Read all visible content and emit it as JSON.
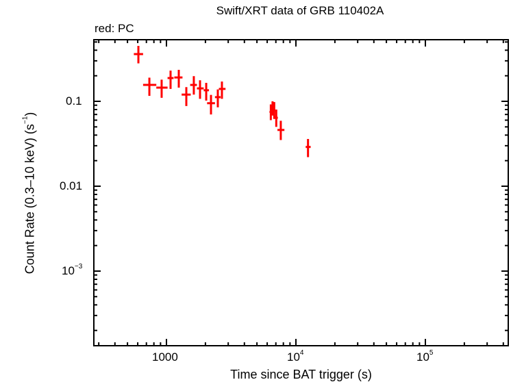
{
  "chart_data": {
    "type": "scatter",
    "title": "Swift/XRT data of GRB 110402A",
    "subtitle": "red: PC",
    "xlabel": "Time since BAT trigger (s)",
    "ylabel": "Count Rate (0.3–10 keV) (s⁻¹)",
    "xscale": "log",
    "yscale": "log",
    "xlim": [
      275,
      437000
    ],
    "ylim": [
      0.00013,
      0.53
    ],
    "x_ticks": [
      {
        "value": 1000,
        "label": "1000"
      },
      {
        "value": 10000,
        "label": "10^4"
      },
      {
        "value": 100000,
        "label": "10^5"
      }
    ],
    "y_ticks": [
      {
        "value": 0.1,
        "label": "0.1"
      },
      {
        "value": 0.01,
        "label": "0.01"
      },
      {
        "value": 0.001,
        "label": "10^-3"
      }
    ],
    "legend": [
      {
        "name": "PC",
        "color": "#ff0000"
      }
    ],
    "grid": false,
    "series": [
      {
        "name": "PC",
        "color": "#ff0000",
        "points": [
          {
            "x": 607,
            "xlo": 560,
            "xhi": 660,
            "y": 0.36,
            "ylo": 0.28,
            "yhi": 0.45
          },
          {
            "x": 738,
            "xlo": 660,
            "xhi": 835,
            "y": 0.156,
            "ylo": 0.116,
            "yhi": 0.19
          },
          {
            "x": 918,
            "xlo": 835,
            "xhi": 1020,
            "y": 0.145,
            "ylo": 0.11,
            "yhi": 0.18
          },
          {
            "x": 1076,
            "xlo": 1020,
            "xhi": 1135,
            "y": 0.188,
            "ylo": 0.14,
            "yhi": 0.23
          },
          {
            "x": 1245,
            "xlo": 1150,
            "xhi": 1330,
            "y": 0.191,
            "ylo": 0.145,
            "yhi": 0.235
          },
          {
            "x": 1424,
            "xlo": 1310,
            "xhi": 1540,
            "y": 0.12,
            "ylo": 0.088,
            "yhi": 0.147
          },
          {
            "x": 1627,
            "xlo": 1525,
            "xhi": 1720,
            "y": 0.156,
            "ylo": 0.12,
            "yhi": 0.198
          },
          {
            "x": 1817,
            "xlo": 1720,
            "xhi": 1940,
            "y": 0.142,
            "ylo": 0.107,
            "yhi": 0.177
          },
          {
            "x": 2028,
            "xlo": 1940,
            "xhi": 2130,
            "y": 0.135,
            "ylo": 0.102,
            "yhi": 0.165
          },
          {
            "x": 2208,
            "xlo": 2060,
            "xhi": 2370,
            "y": 0.095,
            "ylo": 0.07,
            "yhi": 0.119
          },
          {
            "x": 2493,
            "xlo": 2370,
            "xhi": 2620,
            "y": 0.112,
            "ylo": 0.085,
            "yhi": 0.138
          },
          {
            "x": 2682,
            "xlo": 2540,
            "xhi": 2860,
            "y": 0.14,
            "ylo": 0.107,
            "yhi": 0.171
          },
          {
            "x": 6400,
            "xlo": 6250,
            "xhi": 6550,
            "y": 0.075,
            "ylo": 0.06,
            "yhi": 0.092
          },
          {
            "x": 6600,
            "xlo": 6450,
            "xhi": 6750,
            "y": 0.085,
            "ylo": 0.068,
            "yhi": 0.1
          },
          {
            "x": 6800,
            "xlo": 6650,
            "xhi": 6950,
            "y": 0.078,
            "ylo": 0.062,
            "yhi": 0.098
          },
          {
            "x": 7050,
            "xlo": 6900,
            "xhi": 7250,
            "y": 0.064,
            "ylo": 0.05,
            "yhi": 0.08
          },
          {
            "x": 7640,
            "xlo": 7200,
            "xhi": 8150,
            "y": 0.046,
            "ylo": 0.035,
            "yhi": 0.059
          },
          {
            "x": 12400,
            "xlo": 11900,
            "xhi": 13000,
            "y": 0.029,
            "ylo": 0.022,
            "yhi": 0.036
          }
        ]
      }
    ]
  }
}
